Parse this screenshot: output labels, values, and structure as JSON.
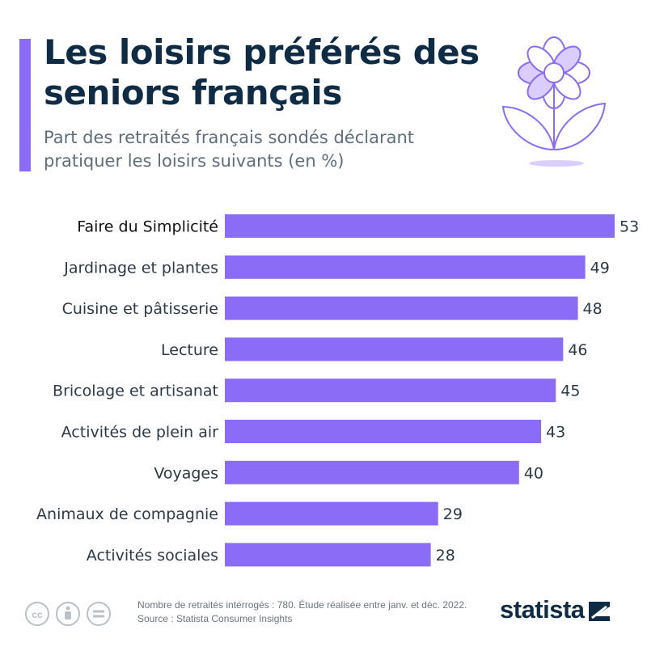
{
  "header": {
    "title": "Les loisirs préférés des seniors français",
    "subtitle": "Part des retraités français sondés déclarant pratiquer les loisirs suivants (en %)"
  },
  "colors": {
    "bar": "#8b6cf6",
    "title": "#0e2c45",
    "subtitle": "#5c6e7e",
    "accent": "#8b6cf6"
  },
  "icons": [
    "flower-illustration-icon",
    "creative-commons-icon",
    "attribution-icon",
    "no-derivatives-icon",
    "statista-logo-icon"
  ],
  "chart_data": {
    "type": "bar",
    "orientation": "horizontal",
    "categories": [
      "Faire du Simplicité",
      "Jardinage et plantes",
      "Cuisine et pâtisserie",
      "Lecture",
      "Bricolage et artisanat",
      "Activités de plein air",
      "Voyages",
      "Animaux de compagnie",
      "Activités sociales"
    ],
    "values": [
      53,
      49,
      48,
      46,
      45,
      43,
      40,
      29,
      28
    ],
    "xlim": [
      0,
      53
    ],
    "grid": false,
    "legend": "none",
    "title": "",
    "xlabel": "",
    "ylabel": ""
  },
  "footer": {
    "note": "Nombre de retraités intérrogés : 780. Étude réalisée entre janv. et déc. 2022.",
    "source": "Source : Statista Consumer Insights",
    "brand": "statista"
  }
}
